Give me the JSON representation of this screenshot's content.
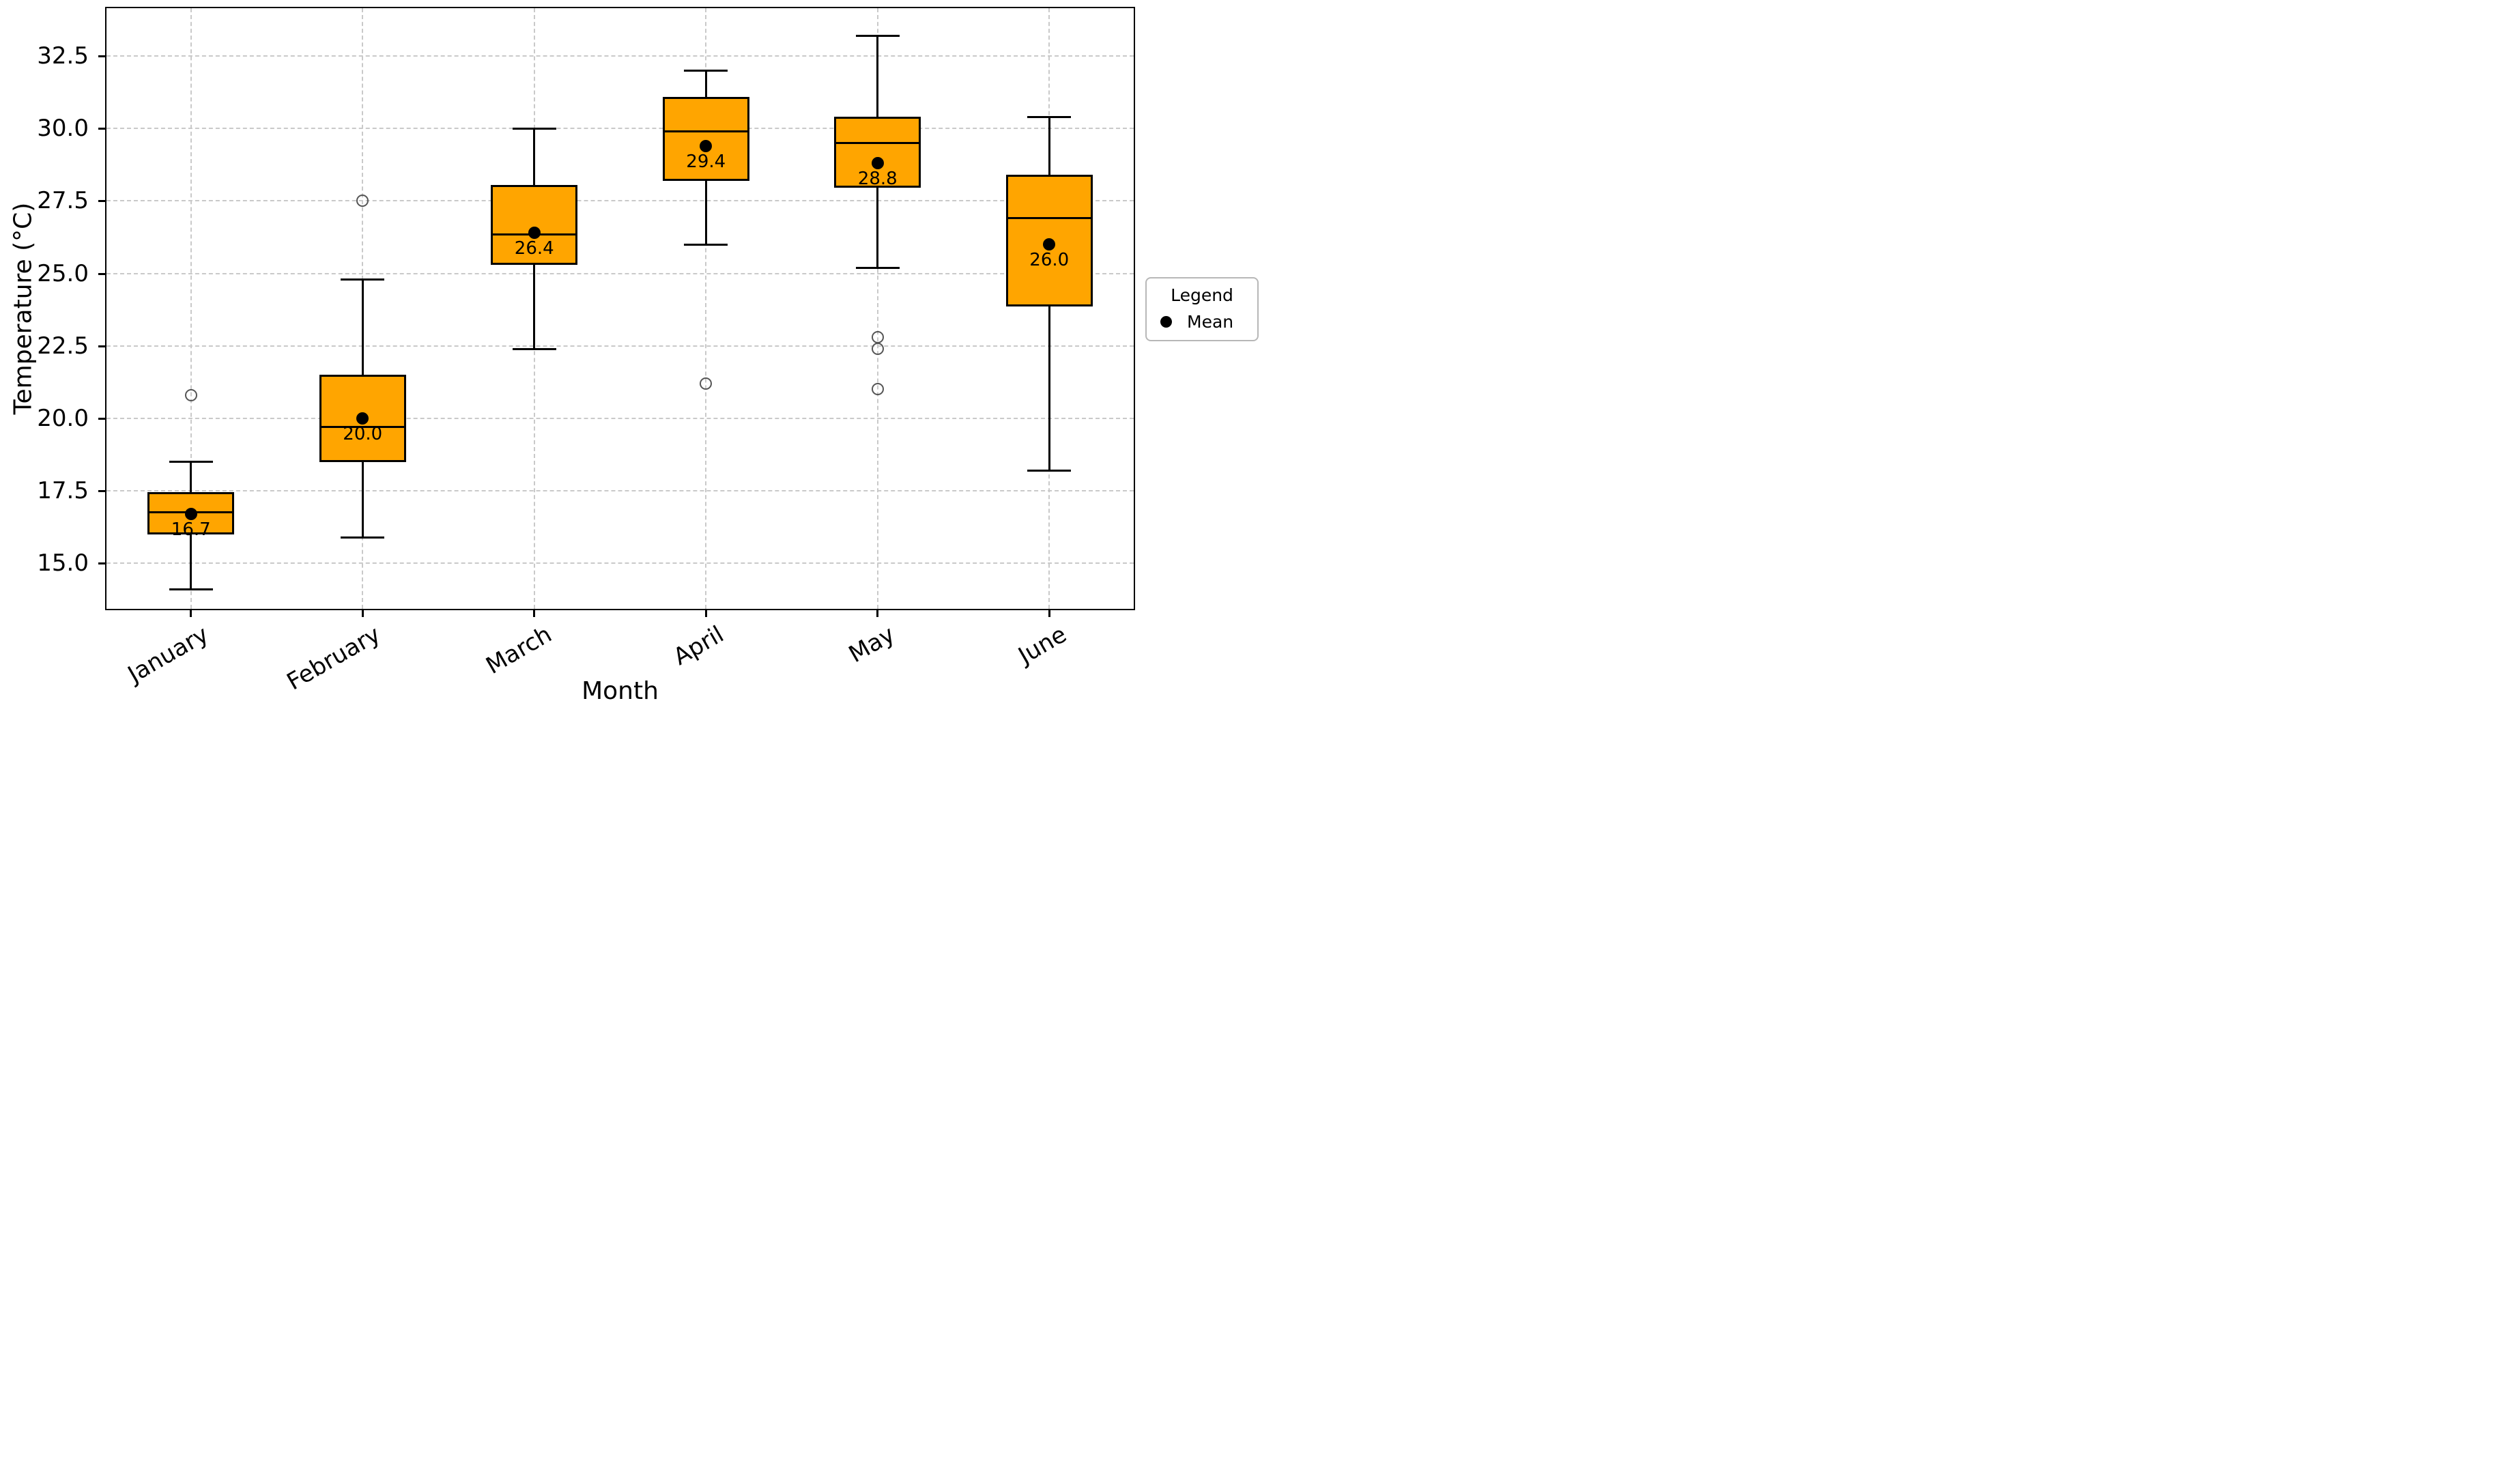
{
  "chart_data": {
    "type": "boxplot",
    "title": "",
    "xlabel": "Month",
    "ylabel": "Temperature (°C)",
    "categories": [
      "January",
      "February",
      "March",
      "April",
      "May",
      "June"
    ],
    "ylim": [
      13.38,
      34.2
    ],
    "yticks": [
      15.0,
      17.5,
      20.0,
      22.5,
      25.0,
      27.5,
      30.0,
      32.5
    ],
    "ytick_labels": [
      "15.0",
      "17.5",
      "20.0",
      "22.5",
      "25.0",
      "27.5",
      "30.0",
      "32.5"
    ],
    "grid": true,
    "grid_style": "dashed",
    "colors": {
      "box_fill": "#FFA500",
      "box_edge": "#000000",
      "median_line": "#000000",
      "whisker": "#000000",
      "mean_marker": "#000000",
      "outlier_edge": "#555555",
      "grid_line": "#c9c9c9",
      "spine": "#000000"
    },
    "legend": {
      "title": "Legend",
      "position": "right-outside-center",
      "entries": [
        {
          "label": "Mean",
          "marker": "black-filled-circle"
        }
      ]
    },
    "series": [
      {
        "month": "January",
        "whisker_low": 14.1,
        "q1": 16.0,
        "median": 16.75,
        "q3": 17.45,
        "whisker_high": 18.5,
        "mean": 16.7,
        "mean_label": "16.7",
        "outliers": [
          20.8
        ]
      },
      {
        "month": "February",
        "whisker_low": 15.9,
        "q1": 18.5,
        "median": 19.7,
        "q3": 21.5,
        "whisker_high": 24.8,
        "mean": 20.0,
        "mean_label": "20.0",
        "outliers": [
          27.5
        ]
      },
      {
        "month": "March",
        "whisker_low": 22.4,
        "q1": 25.3,
        "median": 26.35,
        "q3": 28.05,
        "whisker_high": 30.0,
        "mean": 26.4,
        "mean_label": "26.4",
        "outliers": []
      },
      {
        "month": "April",
        "whisker_low": 26.0,
        "q1": 28.2,
        "median": 29.9,
        "q3": 31.1,
        "whisker_high": 32.0,
        "mean": 29.4,
        "mean_label": "29.4",
        "outliers": [
          21.2
        ]
      },
      {
        "month": "May",
        "whisker_low": 25.2,
        "q1": 27.95,
        "median": 29.5,
        "q3": 30.4,
        "whisker_high": 33.2,
        "mean": 28.8,
        "mean_label": "28.8",
        "outliers": [
          22.8,
          22.4,
          21.0
        ]
      },
      {
        "month": "June",
        "whisker_low": 18.2,
        "q1": 23.85,
        "median": 26.9,
        "q3": 28.4,
        "whisker_high": 30.4,
        "mean": 26.0,
        "mean_label": "26.0",
        "outliers": []
      }
    ]
  }
}
